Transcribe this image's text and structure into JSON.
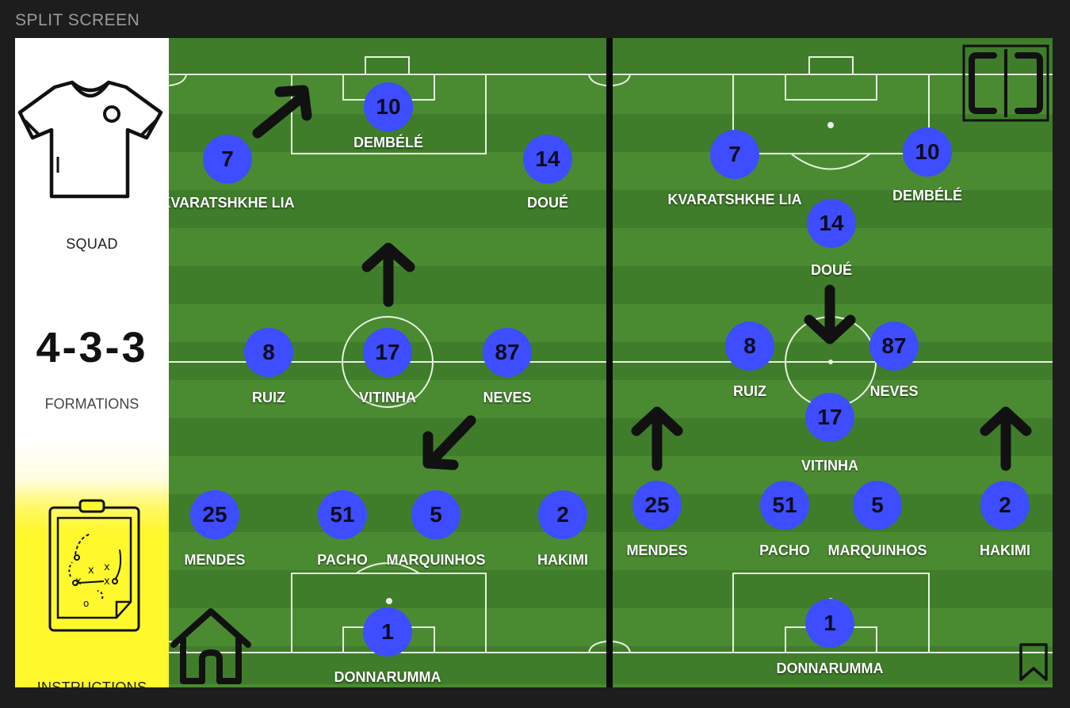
{
  "header": {
    "title": "SPLIT SCREEN"
  },
  "sidebar": {
    "squad_label": "SQUAD",
    "formation_value": "4-3-3",
    "formations_label": "FORMATIONS",
    "instructions_label": "INSTRUCTIONS"
  },
  "left_pitch": {
    "players": [
      {
        "number": "10",
        "name": "DEMBÉLÉ"
      },
      {
        "number": "7",
        "name": "KVARATSHKHE LIA"
      },
      {
        "number": "14",
        "name": "DOUÉ"
      },
      {
        "number": "8",
        "name": "RUIZ"
      },
      {
        "number": "17",
        "name": "VITINHA"
      },
      {
        "number": "87",
        "name": "NEVES"
      },
      {
        "number": "25",
        "name": "MENDES"
      },
      {
        "number": "51",
        "name": "PACHO"
      },
      {
        "number": "5",
        "name": "MARQUINHOS"
      },
      {
        "number": "2",
        "name": "HAKIMI"
      },
      {
        "number": "1",
        "name": "DONNARUMMA"
      }
    ]
  },
  "right_pitch": {
    "players": [
      {
        "number": "7",
        "name": "KVARATSHKHE LIA"
      },
      {
        "number": "10",
        "name": "DEMBÉLÉ"
      },
      {
        "number": "14",
        "name": "DOUÉ"
      },
      {
        "number": "8",
        "name": "RUIZ"
      },
      {
        "number": "87",
        "name": "NEVES"
      },
      {
        "number": "17",
        "name": "VITINHA"
      },
      {
        "number": "25",
        "name": "MENDES"
      },
      {
        "number": "51",
        "name": "PACHO"
      },
      {
        "number": "5",
        "name": "MARQUINHOS"
      },
      {
        "number": "2",
        "name": "HAKIMI"
      },
      {
        "number": "1",
        "name": "DONNARUMMA"
      }
    ]
  },
  "icons": {
    "squad": "shirt-icon",
    "instructions": "tactics-clipboard-icon",
    "home": "home-icon",
    "split": "split-screen-icon",
    "bookmark": "bookmark-icon"
  },
  "colors": {
    "player_circle": "#3d4dff",
    "instructions_bg": "#fff82d",
    "pitch_green": "#4a8b32"
  }
}
